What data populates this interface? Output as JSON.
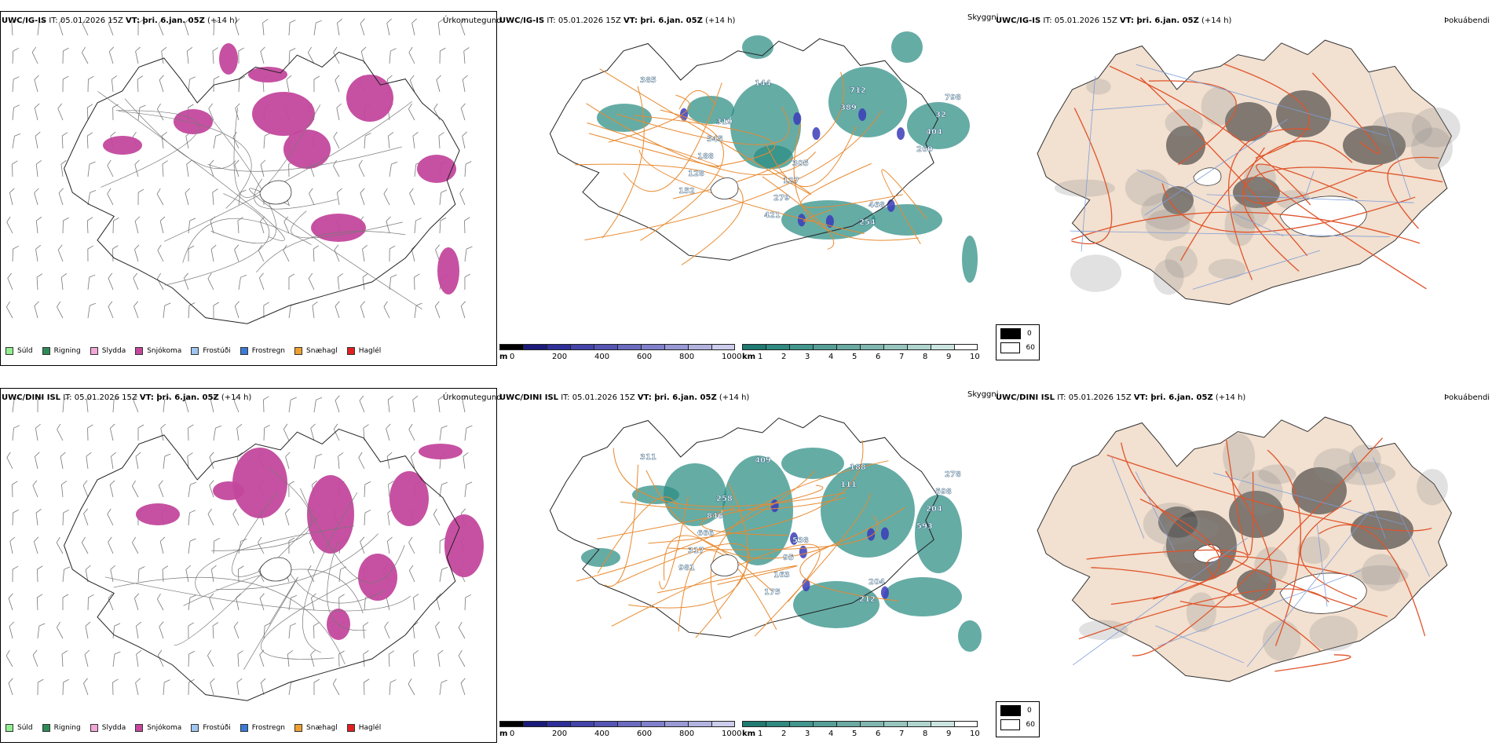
{
  "colors": {
    "snow": "#c3489d",
    "teal": "#2a8c82",
    "orange": "#e88a30",
    "tan": "#f2e0d0",
    "road": "#e0542a",
    "river": "#7f9ed8",
    "blue": "#3b3bb8"
  },
  "rows": [
    {
      "model": "UWC/IG-IS",
      "precip": {
        "it": " IT: 05.01.2026 15Z ",
        "vt": "VT: þri. 6.jan. 05Z",
        "lead": " (+14 h)",
        "title": "Úrkomutegund"
      },
      "cloud": {
        "it": " IT: 05.01.2026 15Z ",
        "vt": "VT: þri. 6.jan. 05Z",
        "lead": " (+14 h)",
        "title": "Skyggni"
      },
      "fog": {
        "it": " IT: 05.01.2026 15Z ",
        "vt": "VT: þri. 6.jan. 05Z",
        "lead": " (+14 h)",
        "title": "Þokuábendi"
      },
      "labels": [
        "385",
        "319",
        "305",
        "468",
        "798",
        "545",
        "127",
        "254",
        "32",
        "188",
        "279",
        "712",
        "404",
        "128",
        "421",
        "389",
        "260",
        "152",
        "144"
      ]
    },
    {
      "model": "UWC/DINI ISL",
      "precip": {
        "it": " IT: 05.01.2026 15Z ",
        "vt": "VT: þri. 6.jan. 05Z",
        "lead": " (+14 h)",
        "title": "Úrkomutegund"
      },
      "cloud": {
        "it": " IT: 05.01.2026 15Z ",
        "vt": "VT: þri. 6.jan. 05Z",
        "lead": " (+14 h)",
        "title": "Skyggni"
      },
      "fog": {
        "it": " IT: 05.01.2026 15Z ",
        "vt": "VT: þri. 6.jan. 05Z",
        "lead": " (+14 h)",
        "title": "Þokuábendi"
      },
      "labels": [
        "311",
        "258",
        "538",
        "204",
        "278",
        "846",
        "95",
        "212",
        "598",
        "666",
        "163",
        "188",
        "204",
        "317",
        "175",
        "111",
        "593",
        "981",
        "409"
      ]
    }
  ],
  "precip_legend": [
    {
      "label": "Súld",
      "color": "#90ee90"
    },
    {
      "label": "Rigning",
      "color": "#2e8b57"
    },
    {
      "label": "Slydda",
      "color": "#f4a6d7"
    },
    {
      "label": "Snjókoma",
      "color": "#c3489d"
    },
    {
      "label": "Frostúði",
      "color": "#9ec6f0"
    },
    {
      "label": "Frostregn",
      "color": "#3a7bd5"
    },
    {
      "label": "Snæhagl",
      "color": "#f0a030"
    },
    {
      "label": "Haglél",
      "color": "#e02020"
    }
  ],
  "cbar_m": {
    "unit": "m",
    "ticks": [
      "0",
      "200",
      "400",
      "600",
      "800",
      "1000"
    ],
    "colors": [
      "#000000",
      "#1a1a7a",
      "#2f2f99",
      "#4444aa",
      "#5555b4",
      "#6b6bc0",
      "#8080cc",
      "#9999d6",
      "#b3b3e0",
      "#ccccec"
    ]
  },
  "cbar_km": {
    "unit": "km",
    "ticks": [
      "1",
      "2",
      "3",
      "4",
      "5",
      "6",
      "7",
      "8",
      "9",
      "10"
    ],
    "colors": [
      "#1f7a72",
      "#2f8a80",
      "#41978e",
      "#559f97",
      "#6aaaa2",
      "#80b7b0",
      "#98c6bf",
      "#b0d4ce",
      "#cbe4df",
      "#ffffff"
    ]
  },
  "fog_legend": [
    {
      "label": "0",
      "color": "#000000"
    },
    {
      "label": "60",
      "color": "#ffffff"
    }
  ]
}
